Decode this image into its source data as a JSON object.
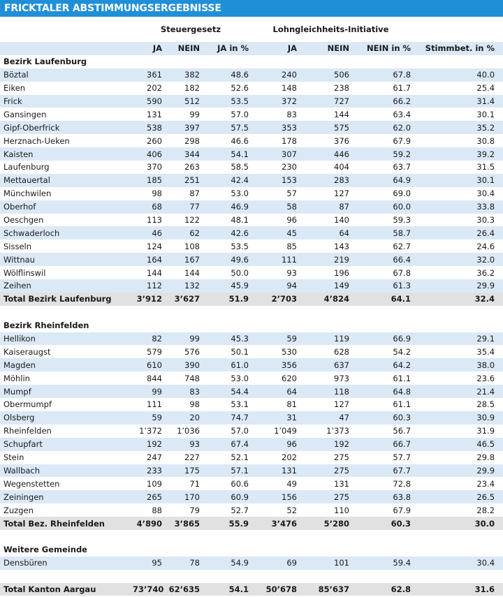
{
  "header": {
    "title": "FRICKTALER ABSTIMMUNGSERGEBNISSE"
  },
  "table": {
    "groups": [
      "Steuergesetz",
      "Lohngleichheits-Initiative"
    ],
    "columns": [
      "JA",
      "NEIN",
      "JA in %",
      "JA",
      "NEIN",
      "NEIN in %",
      "Stimmbet. in %"
    ],
    "sections": [
      {
        "title": "Bezirk Laufenburg",
        "rows": [
          [
            "Böztal",
            "361",
            "382",
            "48.6",
            "240",
            "506",
            "67.8",
            "40.0"
          ],
          [
            "Eiken",
            "202",
            "182",
            "52.6",
            "148",
            "238",
            "61.7",
            "25.4"
          ],
          [
            "Frick",
            "590",
            "512",
            "53.5",
            "372",
            "727",
            "66.2",
            "31.4"
          ],
          [
            "Gansingen",
            "131",
            "99",
            "57.0",
            "83",
            "144",
            "63.4",
            "30.1"
          ],
          [
            "Gipf-Oberfrick",
            "538",
            "397",
            "57.5",
            "353",
            "575",
            "62.0",
            "35.2"
          ],
          [
            "Herznach-Ueken",
            "260",
            "298",
            "46.6",
            "178",
            "376",
            "67.9",
            "30.8"
          ],
          [
            "Kaisten",
            "406",
            "344",
            "54.1",
            "307",
            "446",
            "59.2",
            "39.2"
          ],
          [
            "Laufenburg",
            "370",
            "263",
            "58.5",
            "230",
            "404",
            "63.7",
            "31.5"
          ],
          [
            "Mettauertal",
            "185",
            "251",
            "42.4",
            "153",
            "283",
            "64.9",
            "30.1"
          ],
          [
            "Münchwilen",
            "98",
            "87",
            "53.0",
            "57",
            "127",
            "69.0",
            "30.4"
          ],
          [
            "Oberhof",
            "68",
            "77",
            "46.9",
            "58",
            "87",
            "60.0",
            "33.8"
          ],
          [
            "Oeschgen",
            "113",
            "122",
            "48.1",
            "96",
            "140",
            "59.3",
            "30.3"
          ],
          [
            "Schwaderloch",
            "46",
            "62",
            "42.6",
            "45",
            "64",
            "58.7",
            "26.4"
          ],
          [
            "Sisseln",
            "124",
            "108",
            "53.5",
            "85",
            "143",
            "62.7",
            "24.6"
          ],
          [
            "Wittnau",
            "164",
            "167",
            "49.6",
            "111",
            "219",
            "66.4",
            "32.0"
          ],
          [
            "Wölflinswil",
            "144",
            "144",
            "50.0",
            "93",
            "196",
            "67.8",
            "36.2"
          ],
          [
            "Zeihen",
            "112",
            "132",
            "45.9",
            "94",
            "149",
            "61.3",
            "29.9"
          ]
        ],
        "total": [
          "Total Bezirk Laufenburg",
          "3’912",
          "3’627",
          "51.9",
          "2’703",
          "4’824",
          "64.1",
          "32.4"
        ]
      },
      {
        "title": "Bezirk Rheinfelden",
        "rows": [
          [
            "Hellikon",
            "82",
            "99",
            "45.3",
            "59",
            "119",
            "66.9",
            "29.1"
          ],
          [
            "Kaiseraugst",
            "579",
            "576",
            "50.1",
            "530",
            "628",
            "54.2",
            "35.4"
          ],
          [
            "Magden",
            "610",
            "390",
            "61.0",
            "356",
            "637",
            "64.2",
            "38.0"
          ],
          [
            "Möhlin",
            "844",
            "748",
            "53.0",
            "620",
            "973",
            "61.1",
            "23.6"
          ],
          [
            "Mumpf",
            "99",
            "83",
            "54.4",
            "64",
            "118",
            "64.8",
            "21.4"
          ],
          [
            "Obermumpf",
            "111",
            "98",
            "53.1",
            "81",
            "127",
            "61.1",
            "28.5"
          ],
          [
            "Olsberg",
            "59",
            "20",
            "74.7",
            "31",
            "47",
            "60.3",
            "30.9"
          ],
          [
            "Rheinfelden",
            "1’372",
            "1’036",
            "57.0",
            "1’049",
            "1’373",
            "56.7",
            "31.9"
          ],
          [
            "Schupfart",
            "192",
            "93",
            "67.4",
            "96",
            "192",
            "66.7",
            "46.5"
          ],
          [
            "Stein",
            "247",
            "227",
            "52.1",
            "202",
            "275",
            "57.7",
            "29.8"
          ],
          [
            "Wallbach",
            "233",
            "175",
            "57.1",
            "131",
            "275",
            "67.7",
            "29.9"
          ],
          [
            "Wegenstetten",
            "109",
            "71",
            "60.6",
            "49",
            "131",
            "72.8",
            "23.4"
          ],
          [
            "Zeiningen",
            "265",
            "170",
            "60.9",
            "156",
            "275",
            "63.8",
            "26.5"
          ],
          [
            "Zuzgen",
            "88",
            "79",
            "52.7",
            "52",
            "110",
            "67.9",
            "28.2"
          ]
        ],
        "total": [
          "Total Bez. Rheinfelden",
          "4’890",
          "3’865",
          "55.9",
          "3’476",
          "5’280",
          "60.3",
          "30.0"
        ]
      },
      {
        "title": "Weitere Gemeinde",
        "rows": [
          [
            "Densbüren",
            "95",
            "78",
            "54.9",
            "69",
            "101",
            "59.4",
            "30.4"
          ]
        ]
      }
    ],
    "total": [
      "Total Kanton Aargau",
      "73’740",
      "62’635",
      "54.1",
      "50’678",
      "85’637",
      "62.8",
      "31.6"
    ]
  }
}
